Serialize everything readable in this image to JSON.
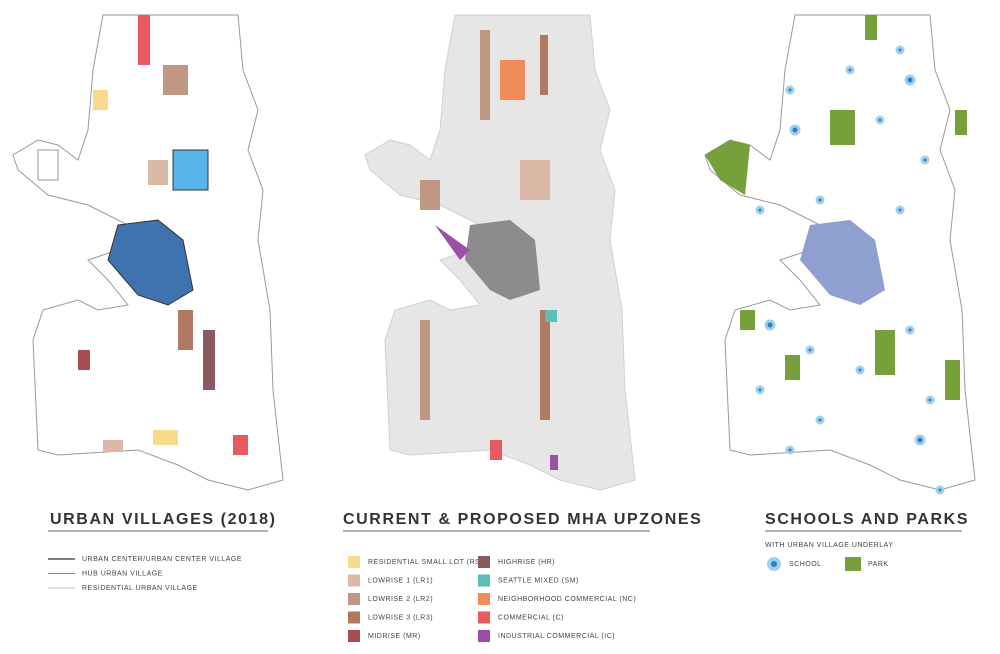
{
  "panels": [
    {
      "title": "URBAN VILLAGES (2018)",
      "legend": [
        {
          "label": "URBAN CENTER/URBAN CENTER VILLAGE",
          "color": "#555555",
          "width": 1.6
        },
        {
          "label": "HUB URBAN VILLAGE",
          "color": "#8a8a8a",
          "width": 1.1
        },
        {
          "label": "RESIDENTIAL URBAN VILLAGE",
          "color": "#b5b5b5",
          "width": 0.8
        }
      ]
    },
    {
      "title": "CURRENT & PROPOSED MHA UPZONES",
      "legend": [
        {
          "label": "RESIDENTIAL SMALL LOT (RSL)",
          "color": "#f9d98b"
        },
        {
          "label": "LOWRISE 1 (LR1)",
          "color": "#dcb9a6"
        },
        {
          "label": "LOWRISE 2 (LR2)",
          "color": "#bf9782"
        },
        {
          "label": "LOWRISE 3 (LR3)",
          "color": "#b07a62"
        },
        {
          "label": "MIDRISE (MR)",
          "color": "#a84e52"
        },
        {
          "label": "HIGHRISE (HR)",
          "color": "#8a5a5e"
        },
        {
          "label": "SEATTLE MIXED (SM)",
          "color": "#5bbfb5"
        },
        {
          "label": "NEIGHBORHOOD COMMERCIAL (NC)",
          "color": "#f08c5a"
        },
        {
          "label": "COMMERCIAL (C)",
          "color": "#e85a60"
        },
        {
          "label": "INDUSTRIAL COMMERCIAL (IC)",
          "color": "#9b4fa8"
        }
      ]
    },
    {
      "title": "SCHOOLS AND PARKS",
      "subtitle": "WITH URBAN VILLAGE UNDERLAY",
      "legend": [
        {
          "label": "SCHOOL",
          "color": "#2f7fc1"
        },
        {
          "label": "PARK",
          "color": "#76a03a"
        }
      ]
    }
  ]
}
